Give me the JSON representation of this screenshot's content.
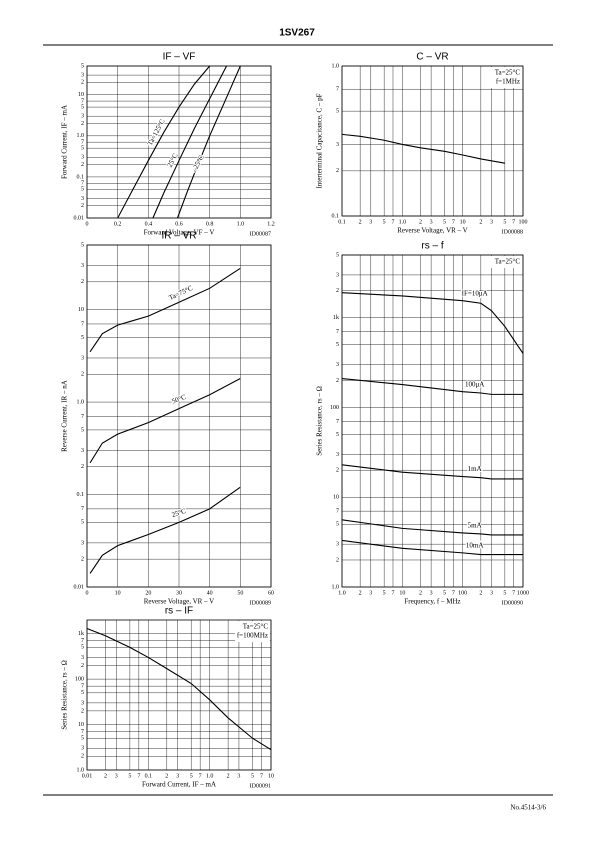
{
  "header": {
    "title": "1SV267"
  },
  "footer": {
    "text": "No.4514-3/6"
  },
  "chart_data": [
    {
      "type": "line",
      "title": "IF – VF",
      "x_label": "Forward Voltage, VF – V",
      "y_label": "Forward Current, IF – mA",
      "code": "ID00087",
      "xlim": [
        0,
        1.2
      ],
      "ylim": [
        0.01,
        50
      ],
      "xscale": "linear",
      "yscale": "log",
      "grid": true,
      "xticks": [
        0,
        0.2,
        0.4,
        0.6,
        0.8,
        {
          "value": 1,
          "label": "1.0"
        },
        1.2
      ],
      "yticks": [
        0.01,
        {
          "value": 0.02,
          "label": "2"
        },
        {
          "value": 0.03,
          "label": "3"
        },
        {
          "value": 0.05,
          "label": "5"
        },
        {
          "value": 0.07,
          "label": "7"
        },
        0.1,
        {
          "value": 0.2,
          "label": "2"
        },
        {
          "value": 0.3,
          "label": "3"
        },
        {
          "value": 0.5,
          "label": "5"
        },
        {
          "value": 0.7,
          "label": "7"
        },
        {
          "value": 1,
          "label": "1.0"
        },
        2,
        3,
        5,
        7,
        10,
        {
          "value": 20,
          "label": "2"
        },
        {
          "value": 30,
          "label": "3"
        },
        {
          "value": 50,
          "label": "5"
        }
      ],
      "series": [
        {
          "name": "Ta=125°C",
          "color": "#000000",
          "x": [
            0.2,
            0.3,
            0.4,
            0.5,
            0.6,
            0.7,
            0.8
          ],
          "values": [
            0.01,
            0.05,
            0.25,
            1.2,
            5,
            18,
            50
          ]
        },
        {
          "name": "25°C",
          "color": "#000000",
          "x": [
            0.43,
            0.5,
            0.6,
            0.7,
            0.8,
            0.91
          ],
          "values": [
            0.01,
            0.04,
            0.25,
            1.5,
            8,
            50
          ]
        },
        {
          "name": "–25°C",
          "color": "#000000",
          "x": [
            0.59,
            0.65,
            0.7,
            0.8,
            0.9,
            1.0
          ],
          "values": [
            0.01,
            0.04,
            0.12,
            1,
            7,
            50
          ]
        }
      ]
    },
    {
      "type": "line",
      "title": "C – VR",
      "x_label": "Reverse Voltage, VR – V",
      "y_label": "Interterminal Capacitance, C – pF",
      "code": "ID00088",
      "annotations": [
        "Ta=25°C",
        "f=1MHz"
      ],
      "xlim": [
        0.1,
        100
      ],
      "ylim": [
        0.1,
        1
      ],
      "xscale": "log",
      "yscale": "log",
      "grid": true,
      "xticks": [
        0.1,
        {
          "value": 0.2,
          "label": "2"
        },
        {
          "value": 0.3,
          "label": "3"
        },
        {
          "value": 0.5,
          "label": "5"
        },
        {
          "value": 0.7,
          "label": "7"
        },
        {
          "value": 1,
          "label": "1.0"
        },
        2,
        3,
        5,
        7,
        10,
        {
          "value": 20,
          "label": "2"
        },
        {
          "value": 30,
          "label": "3"
        },
        {
          "value": 50,
          "label": "5"
        },
        {
          "value": 70,
          "label": "7"
        },
        100
      ],
      "yticks": [
        0.1,
        {
          "value": 0.2,
          "label": "2"
        },
        {
          "value": 0.3,
          "label": "3"
        },
        {
          "value": 0.5,
          "label": "5"
        },
        {
          "value": 0.7,
          "label": "7"
        },
        {
          "value": 1,
          "label": "1.0"
        }
      ],
      "series": [
        {
          "color": "#000000",
          "x": [
            0.1,
            0.2,
            0.5,
            1,
            2,
            5,
            10,
            20,
            50
          ],
          "values": [
            0.35,
            0.34,
            0.32,
            0.3,
            0.285,
            0.27,
            0.255,
            0.24,
            0.225
          ]
        }
      ]
    },
    {
      "type": "line",
      "title": "IR – VR",
      "x_label": "Reverse Voltage, VR – V",
      "y_label": "Reverse Current, IR – nA",
      "code": "ID00089",
      "xlim": [
        0,
        60
      ],
      "ylim": [
        0.01,
        50
      ],
      "xscale": "linear",
      "yscale": "log",
      "grid": true,
      "xticks": [
        0,
        10,
        20,
        30,
        40,
        50,
        60
      ],
      "yticks": [
        0.01,
        {
          "value": 0.02,
          "label": "2"
        },
        {
          "value": 0.03,
          "label": "3"
        },
        {
          "value": 0.05,
          "label": "5"
        },
        {
          "value": 0.07,
          "label": "7"
        },
        0.1,
        {
          "value": 0.2,
          "label": "2"
        },
        {
          "value": 0.3,
          "label": "3"
        },
        {
          "value": 0.5,
          "label": "5"
        },
        {
          "value": 0.7,
          "label": "7"
        },
        {
          "value": 1,
          "label": "1.0"
        },
        2,
        3,
        5,
        7,
        10,
        {
          "value": 20,
          "label": "2"
        },
        {
          "value": 30,
          "label": "3"
        },
        {
          "value": 50,
          "label": "5"
        }
      ],
      "series": [
        {
          "name": "Ta=75°C",
          "color": "#000000",
          "x": [
            1,
            5,
            10,
            20,
            30,
            40,
            50
          ],
          "values": [
            3.5,
            5.5,
            6.8,
            8.5,
            12,
            17,
            28
          ]
        },
        {
          "name": "50°C",
          "color": "#000000",
          "x": [
            1,
            5,
            10,
            20,
            30,
            40,
            50
          ],
          "values": [
            0.22,
            0.36,
            0.45,
            0.6,
            0.85,
            1.2,
            1.8
          ]
        },
        {
          "name": "25°C",
          "color": "#000000",
          "x": [
            1,
            5,
            10,
            20,
            30,
            40,
            50
          ],
          "values": [
            0.014,
            0.022,
            0.028,
            0.037,
            0.05,
            0.07,
            0.12
          ]
        }
      ]
    },
    {
      "type": "line",
      "title": "rs – f",
      "x_label": "Frequency, f – MHz",
      "y_label": "Series Resistance, rs – Ω",
      "code": "ID00090",
      "annotations": [
        "Ta=25°C"
      ],
      "xlim": [
        1,
        1000
      ],
      "ylim": [
        1,
        5000
      ],
      "xscale": "log",
      "yscale": "log",
      "grid": true,
      "xticks": [
        {
          "value": 1,
          "label": "1.0"
        },
        2,
        3,
        5,
        7,
        10,
        {
          "value": 20,
          "label": "2"
        },
        {
          "value": 30,
          "label": "3"
        },
        {
          "value": 50,
          "label": "5"
        },
        {
          "value": 70,
          "label": "7"
        },
        100,
        {
          "value": 200,
          "label": "2"
        },
        {
          "value": 300,
          "label": "3"
        },
        {
          "value": 500,
          "label": "5"
        },
        {
          "value": 700,
          "label": "7"
        },
        1000
      ],
      "yticks": [
        {
          "value": 1,
          "label": "1.0"
        },
        2,
        3,
        5,
        7,
        10,
        {
          "value": 20,
          "label": "2"
        },
        {
          "value": 30,
          "label": "3"
        },
        {
          "value": 50,
          "label": "5"
        },
        {
          "value": 70,
          "label": "7"
        },
        100,
        {
          "value": 200,
          "label": "2"
        },
        {
          "value": 300,
          "label": "3"
        },
        {
          "value": 500,
          "label": "5"
        },
        {
          "value": 700,
          "label": "7"
        },
        {
          "value": 1000,
          "label": "1k"
        },
        {
          "value": 2000,
          "label": "2"
        },
        {
          "value": 3000,
          "label": "3"
        },
        {
          "value": 5000,
          "label": "5"
        }
      ],
      "series": [
        {
          "name": "IF=10μA",
          "color": "#000000",
          "x": [
            1,
            10,
            100,
            200,
            300,
            500,
            1000
          ],
          "values": [
            1900,
            1750,
            1550,
            1450,
            1200,
            800,
            400
          ]
        },
        {
          "name": "100μA",
          "color": "#000000",
          "x": [
            1,
            10,
            100,
            200,
            300,
            500,
            1000
          ],
          "values": [
            210,
            180,
            150,
            145,
            140,
            140,
            140
          ]
        },
        {
          "name": "1mA",
          "color": "#000000",
          "x": [
            1,
            10,
            100,
            200,
            300,
            500,
            1000
          ],
          "values": [
            23,
            19,
            17,
            16.5,
            16,
            16,
            16
          ]
        },
        {
          "name": "5mA",
          "color": "#000000",
          "x": [
            1,
            10,
            100,
            200,
            300,
            500,
            1000
          ],
          "values": [
            5.6,
            4.5,
            4,
            3.9,
            3.8,
            3.8,
            3.8
          ]
        },
        {
          "name": "10mA",
          "color": "#000000",
          "x": [
            1,
            10,
            100,
            200,
            300,
            500,
            1000
          ],
          "values": [
            3.3,
            2.7,
            2.4,
            2.3,
            2.3,
            2.3,
            2.3
          ]
        }
      ]
    },
    {
      "type": "line",
      "title": "rs – IF",
      "x_label": "Forward Current, IF – mA",
      "y_label": "Series Resistance, rs – Ω",
      "code": "ID00091",
      "annotations": [
        "Ta=25°C",
        "f=100MHz"
      ],
      "xlim": [
        0.01,
        10
      ],
      "ylim": [
        1,
        2000
      ],
      "xscale": "log",
      "yscale": "log",
      "grid": true,
      "xticks": [
        0.01,
        {
          "value": 0.02,
          "label": "2"
        },
        {
          "value": 0.03,
          "label": "3"
        },
        {
          "value": 0.05,
          "label": "5"
        },
        {
          "value": 0.07,
          "label": "7"
        },
        0.1,
        {
          "value": 0.2,
          "label": "2"
        },
        {
          "value": 0.3,
          "label": "3"
        },
        {
          "value": 0.5,
          "label": "5"
        },
        {
          "value": 0.7,
          "label": "7"
        },
        {
          "value": 1,
          "label": "1.0"
        },
        2,
        3,
        5,
        7,
        10
      ],
      "yticks": [
        {
          "value": 1,
          "label": "1.0"
        },
        2,
        3,
        5,
        7,
        10,
        {
          "value": 20,
          "label": "2"
        },
        {
          "value": 30,
          "label": "3"
        },
        {
          "value": 50,
          "label": "5"
        },
        {
          "value": 70,
          "label": "7"
        },
        100,
        {
          "value": 200,
          "label": "2"
        },
        {
          "value": 300,
          "label": "3"
        },
        {
          "value": 500,
          "label": "5"
        },
        {
          "value": 700,
          "label": "7"
        },
        {
          "value": 1000,
          "label": "1k"
        }
      ],
      "series": [
        {
          "color": "#000000",
          "x": [
            0.01,
            0.02,
            0.05,
            0.1,
            0.2,
            0.5,
            1,
            2,
            5,
            10
          ],
          "values": [
            1300,
            900,
            500,
            300,
            170,
            80,
            35,
            14,
            5,
            2.8
          ]
        }
      ]
    }
  ]
}
